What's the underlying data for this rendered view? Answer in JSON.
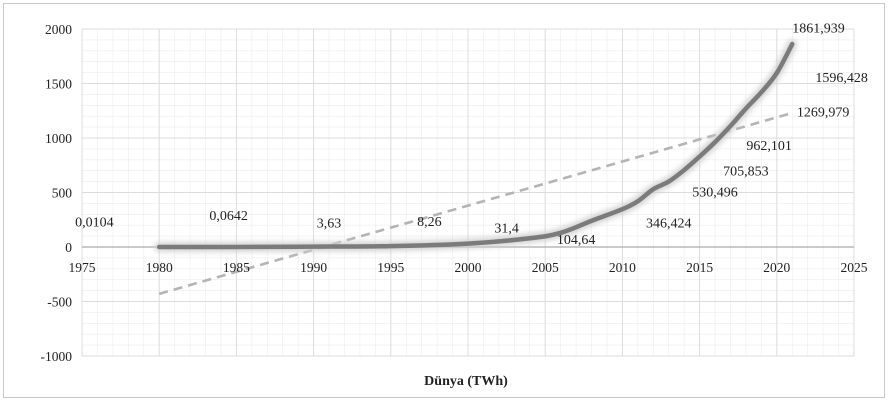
{
  "chart_data": {
    "type": "line",
    "title": "",
    "xlabel": "Dünya (TWh)",
    "ylabel": "",
    "xlim": [
      1975,
      2025
    ],
    "ylim": [
      -1000,
      2000
    ],
    "x_ticks": [
      "1975",
      "1980",
      "1985",
      "1990",
      "1995",
      "2000",
      "2005",
      "2010",
      "2015",
      "2020",
      "2025"
    ],
    "y_ticks": [
      "2000",
      "1500",
      "1000",
      "500",
      "0",
      "-500",
      "-1000"
    ],
    "grid": true,
    "legend": "none",
    "colors": {
      "series": "#7b7b7b",
      "trend": "#b4b4b4",
      "grid": "#dcdcdc",
      "axis": "#aaaaaa"
    },
    "series": [
      {
        "style": "solid",
        "x": [
          1980,
          1985,
          1990,
          1995,
          2000,
          2004,
          2006,
          2008,
          2010,
          2011,
          2012,
          2013,
          2014,
          2015,
          2016,
          2017,
          2018,
          2019,
          2020,
          2021
        ],
        "y": [
          0.0104,
          0.0642,
          3.63,
          8.26,
          31.4,
          80,
          130,
          240,
          346.424,
          420,
          530.496,
          600,
          705.853,
          830,
          962.101,
          1110,
          1269.979,
          1420,
          1596.428,
          1861.939
        ]
      },
      {
        "style": "dashed",
        "x": [
          1980,
          2021
        ],
        "y": [
          -430,
          1230
        ]
      }
    ],
    "annotations": [
      {
        "text": "0,0104",
        "x": 1975.8,
        "y": 235
      },
      {
        "text": "0,0642",
        "x": 1984.5,
        "y": 295
      },
      {
        "text": "3,63",
        "x": 1991,
        "y": 225
      },
      {
        "text": "8,26",
        "x": 1997.5,
        "y": 240
      },
      {
        "text": "31,4",
        "x": 2002.5,
        "y": 180
      },
      {
        "text": "104,64",
        "x": 2007,
        "y": 75
      },
      {
        "text": "346,424",
        "x": 2013,
        "y": 225
      },
      {
        "text": "530,496",
        "x": 2016,
        "y": 510
      },
      {
        "text": "705,853",
        "x": 2018,
        "y": 700
      },
      {
        "text": "962,101",
        "x": 2019.5,
        "y": 935
      },
      {
        "text": "1269,979",
        "x": 2023,
        "y": 1245
      },
      {
        "text": "1596,428",
        "x": 2024.2,
        "y": 1560
      },
      {
        "text": "1861,939",
        "x": 2022.7,
        "y": 2015
      }
    ]
  }
}
